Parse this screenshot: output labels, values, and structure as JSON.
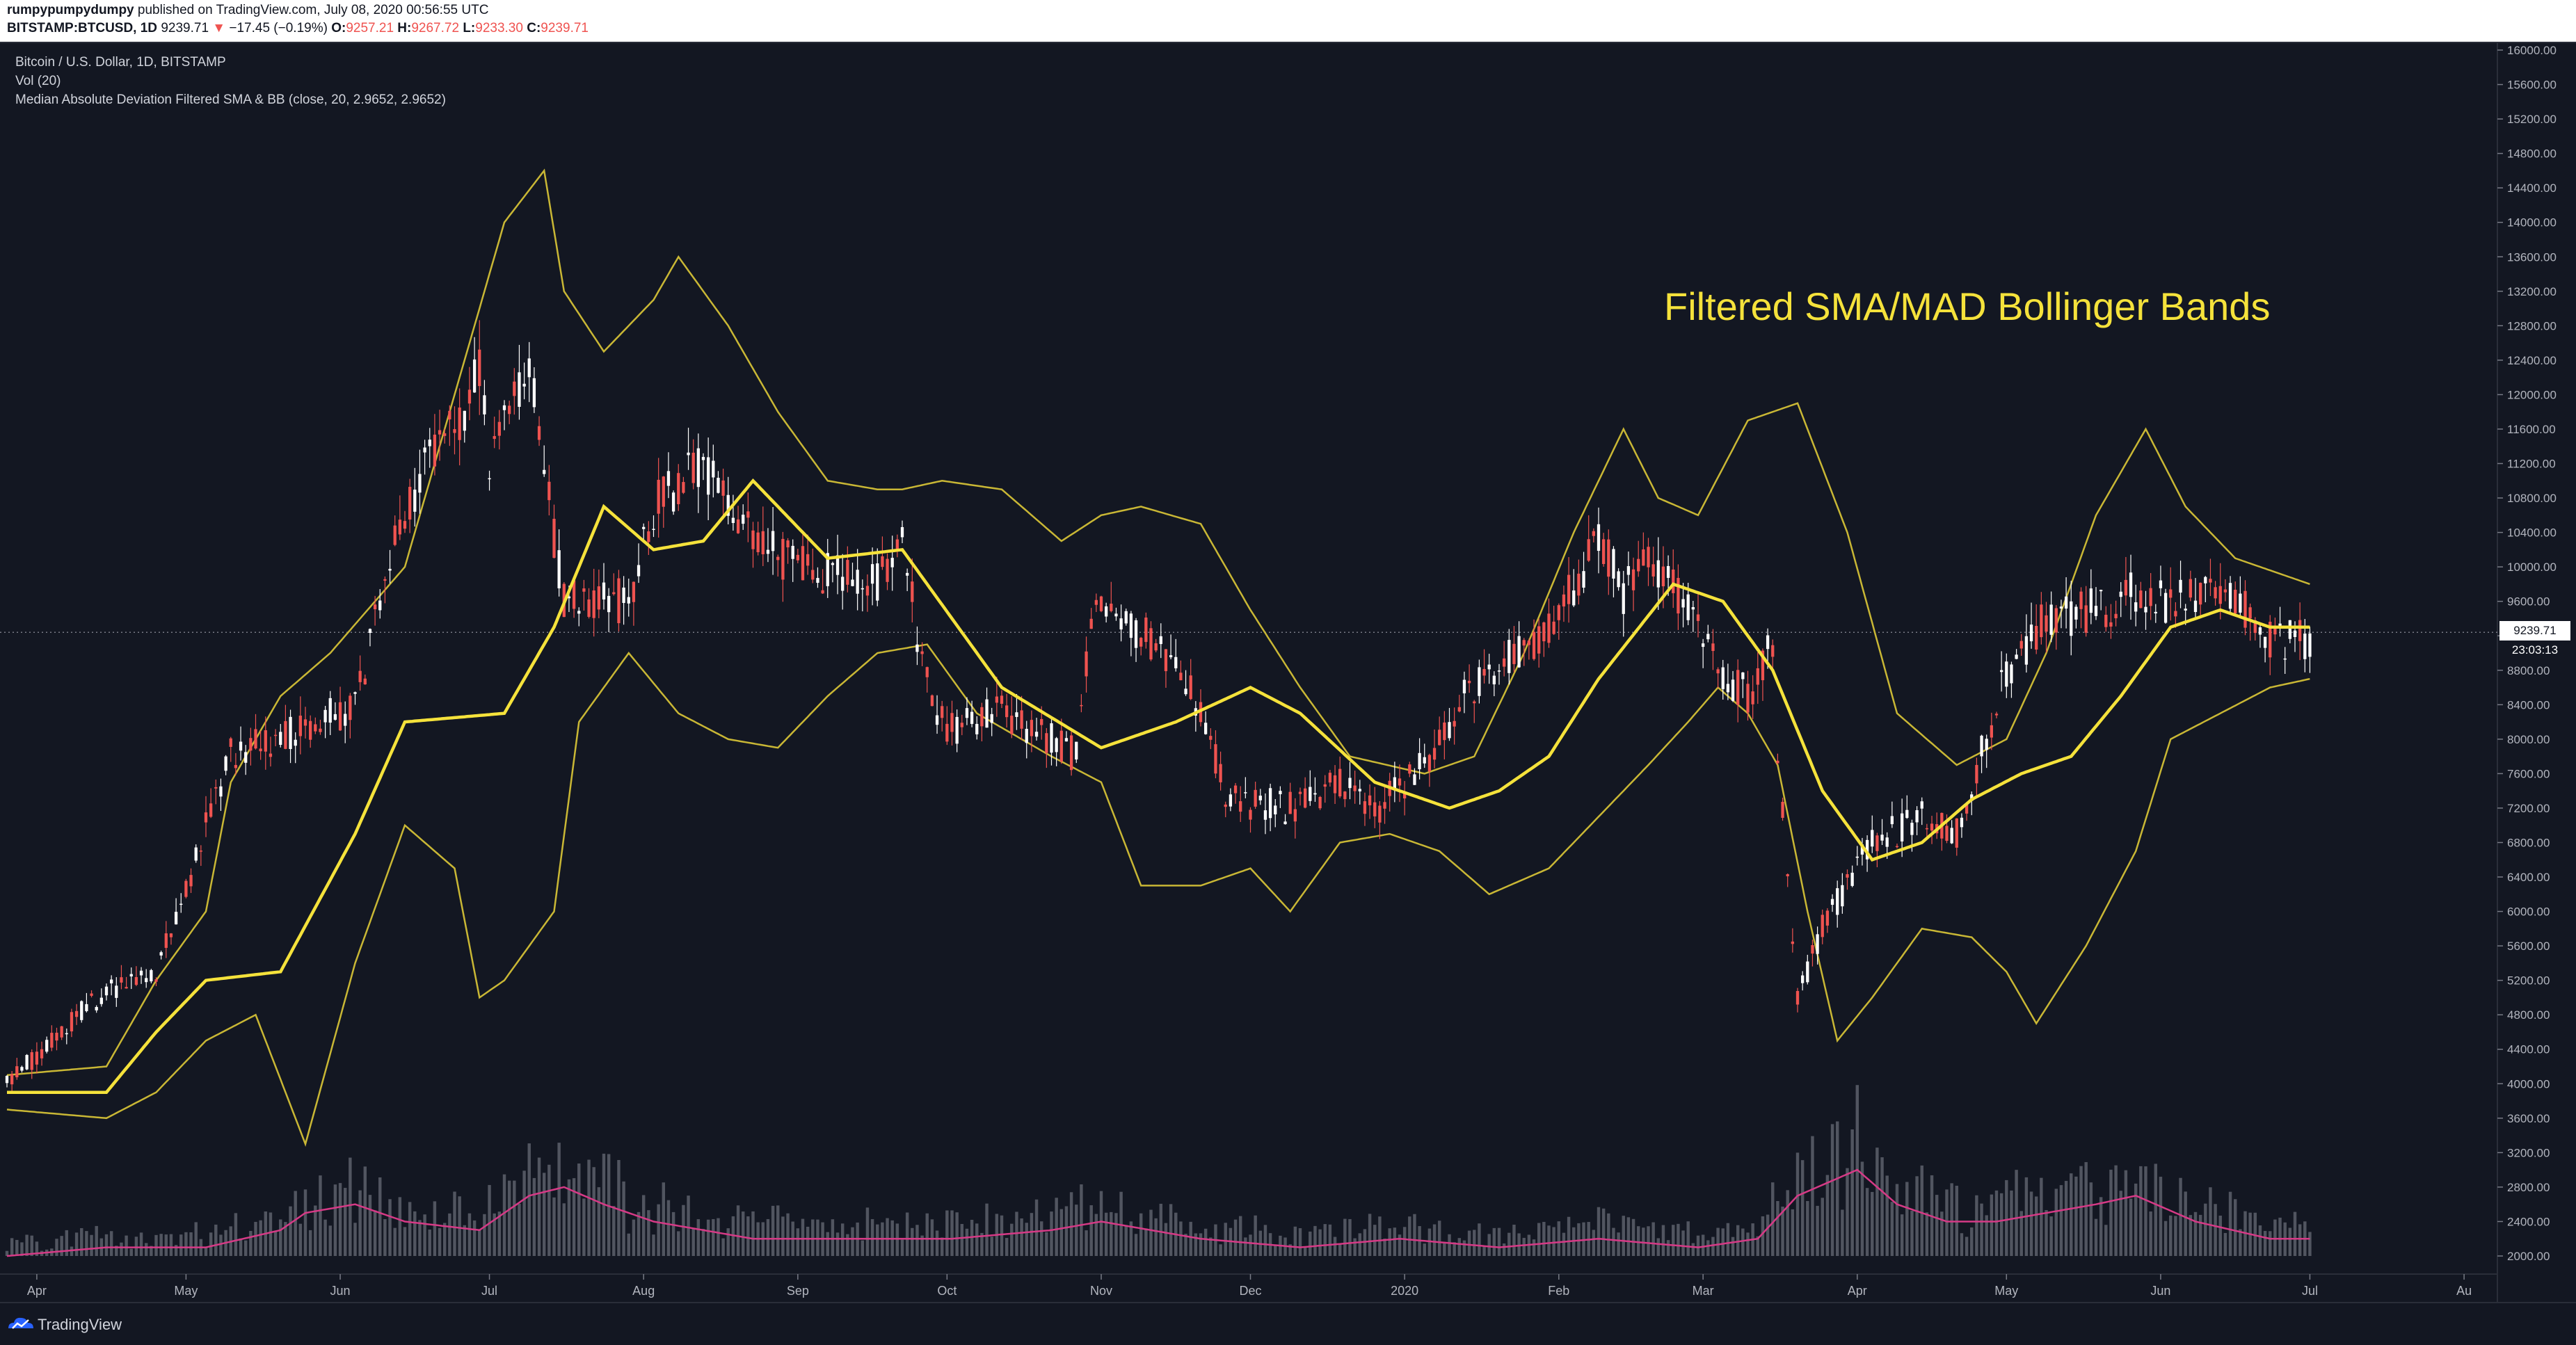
{
  "header": {
    "author": "rumpypumpydumpy",
    "published": "published on TradingView.com, July 08, 2020 00:56:55 UTC",
    "symbol": "BITSTAMP:BTCUSD, 1D",
    "last": "9239.71",
    "change_arrow": "▼",
    "change": "−17.45 (−0.19%)",
    "o_label": "O:",
    "o_value": "9257.21",
    "h_label": "H:",
    "h_value": "9267.72",
    "l_label": "L:",
    "l_value": "9233.30",
    "c_label": "C:",
    "c_value": "9239.71"
  },
  "legend": {
    "title": "Bitcoin / U.S. Dollar, 1D, BITSTAMP",
    "vol": "Vol (20)",
    "indicator": "Median Absolute Deviation Filtered SMA & BB (close, 20, 2.9652, 2.9652)"
  },
  "annotation": "Filtered SMA/MAD Bollinger Bands",
  "price_tag": "9239.71",
  "time_tag": "23:03:13",
  "footer": {
    "brand": "TradingView"
  },
  "colors": {
    "background": "#131722",
    "up": "#ffffff",
    "down": "#ef5350",
    "sma": "#f5e23b",
    "bands": "#c9b735",
    "volume": "#5d606b",
    "volume_ma": "#d63a86"
  },
  "chart_data": {
    "type": "line",
    "title": "Bitcoin / U.S. Dollar, 1D, BITSTAMP",
    "ylim": [
      2000,
      16000
    ],
    "y_ticks": [
      "16000.00",
      "15600.00",
      "15200.00",
      "14800.00",
      "14400.00",
      "14000.00",
      "13600.00",
      "13200.00",
      "12800.00",
      "12400.00",
      "12000.00",
      "11600.00",
      "11200.00",
      "10800.00",
      "10400.00",
      "10000.00",
      "9600.00",
      "9200.00",
      "8800.00",
      "8400.00",
      "8000.00",
      "7600.00",
      "7200.00",
      "6800.00",
      "6400.00",
      "6000.00",
      "5600.00",
      "5200.00",
      "4800.00",
      "4400.00",
      "4000.00",
      "3600.00",
      "3200.00",
      "2800.00",
      "2400.00",
      "2000.00"
    ],
    "x_labels": [
      "Apr",
      "May",
      "Jun",
      "Jul",
      "Aug",
      "Sep",
      "Oct",
      "Nov",
      "Dec",
      "2020",
      "Feb",
      "Mar",
      "Apr",
      "May",
      "Jun",
      "Jul",
      "Au"
    ],
    "x_label_days": [
      6,
      36,
      67,
      97,
      128,
      159,
      189,
      220,
      250,
      281,
      312,
      341,
      372,
      402,
      433,
      463,
      494
    ],
    "x_range_days": [
      0,
      500
    ],
    "price_anchors": [
      [
        0,
        4000
      ],
      [
        20,
        5100
      ],
      [
        30,
        5300
      ],
      [
        45,
        7800
      ],
      [
        55,
        8000
      ],
      [
        60,
        8100
      ],
      [
        70,
        8400
      ],
      [
        80,
        10700
      ],
      [
        95,
        12200
      ],
      [
        97,
        11200
      ],
      [
        105,
        12300
      ],
      [
        112,
        9600
      ],
      [
        125,
        9600
      ],
      [
        130,
        10700
      ],
      [
        140,
        11200
      ],
      [
        150,
        10300
      ],
      [
        160,
        10000
      ],
      [
        175,
        9800
      ],
      [
        180,
        10250
      ],
      [
        185,
        8600
      ],
      [
        190,
        8100
      ],
      [
        200,
        8300
      ],
      [
        215,
        7800
      ],
      [
        218,
        9500
      ],
      [
        228,
        9300
      ],
      [
        240,
        8400
      ],
      [
        245,
        7300
      ],
      [
        258,
        7200
      ],
      [
        268,
        7500
      ],
      [
        275,
        7150
      ],
      [
        285,
        7700
      ],
      [
        292,
        8400
      ],
      [
        300,
        8900
      ],
      [
        310,
        9300
      ],
      [
        320,
        10300
      ],
      [
        325,
        9700
      ],
      [
        330,
        10100
      ],
      [
        338,
        9600
      ],
      [
        345,
        8700
      ],
      [
        350,
        8500
      ],
      [
        355,
        9100
      ],
      [
        356,
        7900
      ],
      [
        360,
        5000
      ],
      [
        365,
        5800
      ],
      [
        375,
        6800
      ],
      [
        385,
        7100
      ],
      [
        392,
        6900
      ],
      [
        402,
        8800
      ],
      [
        410,
        9400
      ],
      [
        420,
        9500
      ],
      [
        428,
        9700
      ],
      [
        433,
        9600
      ],
      [
        440,
        9700
      ],
      [
        450,
        9500
      ],
      [
        456,
        9100
      ],
      [
        463,
        9200
      ]
    ],
    "sma_anchors": [
      [
        0,
        3900
      ],
      [
        20,
        3900
      ],
      [
        30,
        4600
      ],
      [
        40,
        5200
      ],
      [
        55,
        5300
      ],
      [
        70,
        6900
      ],
      [
        80,
        8200
      ],
      [
        100,
        8300
      ],
      [
        110,
        9300
      ],
      [
        120,
        10700
      ],
      [
        130,
        10200
      ],
      [
        140,
        10300
      ],
      [
        150,
        11000
      ],
      [
        165,
        10100
      ],
      [
        180,
        10200
      ],
      [
        200,
        8600
      ],
      [
        220,
        7900
      ],
      [
        235,
        8200
      ],
      [
        250,
        8600
      ],
      [
        260,
        8300
      ],
      [
        275,
        7500
      ],
      [
        290,
        7200
      ],
      [
        300,
        7400
      ],
      [
        310,
        7800
      ],
      [
        320,
        8700
      ],
      [
        335,
        9800
      ],
      [
        345,
        9600
      ],
      [
        355,
        8800
      ],
      [
        365,
        7400
      ],
      [
        375,
        6600
      ],
      [
        385,
        6800
      ],
      [
        395,
        7300
      ],
      [
        405,
        7600
      ],
      [
        415,
        7800
      ],
      [
        425,
        8500
      ],
      [
        435,
        9300
      ],
      [
        445,
        9500
      ],
      [
        455,
        9300
      ],
      [
        463,
        9300
      ]
    ],
    "upper_anchors": [
      [
        0,
        4100
      ],
      [
        20,
        4200
      ],
      [
        30,
        5200
      ],
      [
        40,
        6000
      ],
      [
        45,
        7500
      ],
      [
        55,
        8500
      ],
      [
        65,
        9000
      ],
      [
        80,
        10000
      ],
      [
        90,
        12000
      ],
      [
        100,
        14000
      ],
      [
        108,
        14600
      ],
      [
        112,
        13200
      ],
      [
        120,
        12500
      ],
      [
        130,
        13100
      ],
      [
        135,
        13600
      ],
      [
        145,
        12800
      ],
      [
        155,
        11800
      ],
      [
        165,
        11000
      ],
      [
        175,
        10900
      ],
      [
        180,
        10900
      ],
      [
        188,
        11000
      ],
      [
        200,
        10900
      ],
      [
        212,
        10300
      ],
      [
        220,
        10600
      ],
      [
        228,
        10700
      ],
      [
        240,
        10500
      ],
      [
        250,
        9500
      ],
      [
        260,
        8600
      ],
      [
        270,
        7800
      ],
      [
        285,
        7600
      ],
      [
        295,
        7800
      ],
      [
        305,
        9000
      ],
      [
        315,
        10400
      ],
      [
        325,
        11600
      ],
      [
        332,
        10800
      ],
      [
        340,
        10600
      ],
      [
        350,
        11700
      ],
      [
        360,
        11900
      ],
      [
        370,
        10400
      ],
      [
        380,
        8300
      ],
      [
        392,
        7700
      ],
      [
        402,
        8000
      ],
      [
        410,
        9000
      ],
      [
        420,
        10600
      ],
      [
        430,
        11600
      ],
      [
        438,
        10700
      ],
      [
        448,
        10100
      ],
      [
        463,
        9800
      ]
    ],
    "lower_anchors": [
      [
        0,
        3700
      ],
      [
        20,
        3600
      ],
      [
        30,
        3900
      ],
      [
        40,
        4500
      ],
      [
        50,
        4800
      ],
      [
        60,
        3300
      ],
      [
        70,
        5400
      ],
      [
        80,
        7000
      ],
      [
        90,
        6500
      ],
      [
        95,
        5000
      ],
      [
        100,
        5200
      ],
      [
        110,
        6000
      ],
      [
        115,
        8200
      ],
      [
        125,
        9000
      ],
      [
        135,
        8300
      ],
      [
        145,
        8000
      ],
      [
        155,
        7900
      ],
      [
        165,
        8500
      ],
      [
        175,
        9000
      ],
      [
        185,
        9100
      ],
      [
        195,
        8300
      ],
      [
        210,
        7800
      ],
      [
        220,
        7500
      ],
      [
        228,
        6300
      ],
      [
        240,
        6300
      ],
      [
        250,
        6500
      ],
      [
        258,
        6000
      ],
      [
        268,
        6800
      ],
      [
        278,
        6900
      ],
      [
        288,
        6700
      ],
      [
        298,
        6200
      ],
      [
        310,
        6500
      ],
      [
        320,
        7100
      ],
      [
        330,
        7700
      ],
      [
        338,
        8200
      ],
      [
        344,
        8600
      ],
      [
        350,
        8300
      ],
      [
        356,
        7700
      ],
      [
        362,
        6000
      ],
      [
        368,
        4500
      ],
      [
        375,
        5000
      ],
      [
        385,
        5800
      ],
      [
        395,
        5700
      ],
      [
        402,
        5300
      ],
      [
        408,
        4700
      ],
      [
        418,
        5600
      ],
      [
        428,
        6700
      ],
      [
        435,
        8000
      ],
      [
        445,
        8300
      ],
      [
        455,
        8600
      ],
      [
        463,
        8700
      ]
    ],
    "volume_ma_anchors": [
      [
        0,
        2000
      ],
      [
        20,
        2100
      ],
      [
        40,
        2100
      ],
      [
        55,
        2300
      ],
      [
        60,
        2500
      ],
      [
        70,
        2600
      ],
      [
        80,
        2400
      ],
      [
        95,
        2300
      ],
      [
        105,
        2700
      ],
      [
        112,
        2800
      ],
      [
        120,
        2600
      ],
      [
        130,
        2400
      ],
      [
        150,
        2200
      ],
      [
        170,
        2200
      ],
      [
        190,
        2200
      ],
      [
        210,
        2300
      ],
      [
        220,
        2400
      ],
      [
        240,
        2200
      ],
      [
        260,
        2100
      ],
      [
        280,
        2200
      ],
      [
        300,
        2100
      ],
      [
        320,
        2200
      ],
      [
        340,
        2100
      ],
      [
        352,
        2200
      ],
      [
        360,
        2700
      ],
      [
        368,
        2900
      ],
      [
        372,
        3000
      ],
      [
        380,
        2600
      ],
      [
        390,
        2400
      ],
      [
        400,
        2400
      ],
      [
        410,
        2500
      ],
      [
        420,
        2600
      ],
      [
        428,
        2700
      ],
      [
        440,
        2400
      ],
      [
        455,
        2200
      ],
      [
        463,
        2200
      ]
    ],
    "last_price": 9239.71
  }
}
